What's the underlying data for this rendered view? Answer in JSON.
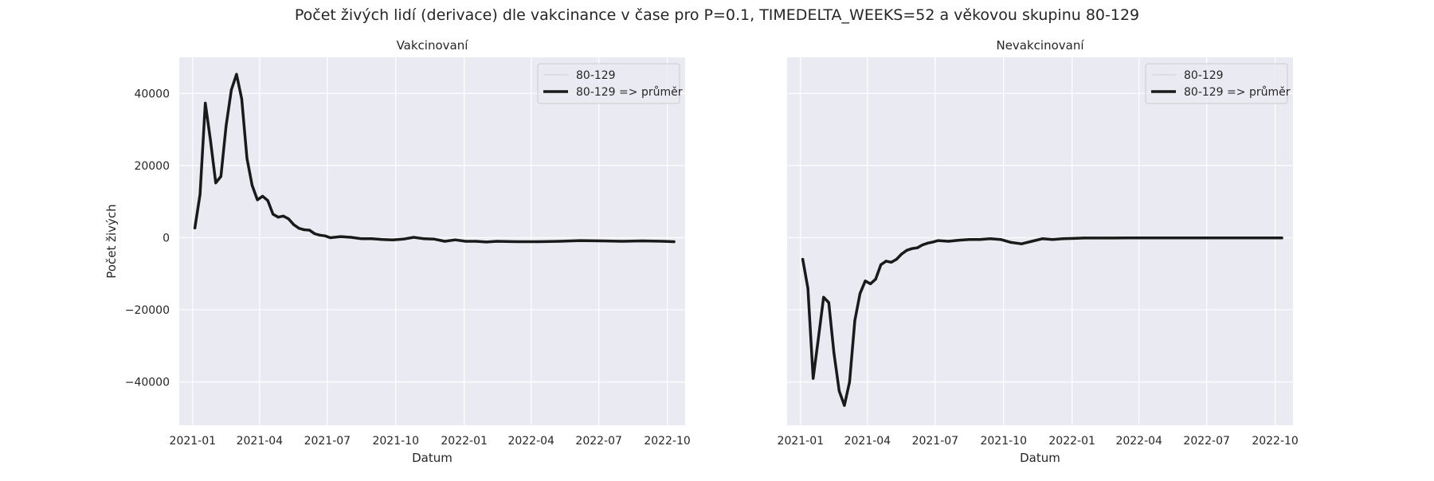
{
  "figure": {
    "title": "Počet živých lidí (derivace) dle vakcinance v čase pro P=0.1, TIMEDELTA_WEEKS=52 a věkovou skupinu 80-129"
  },
  "colors": {
    "plot_background": "#eaeaf2",
    "grid": "#ffffff",
    "mean_line": "#1a1a1a",
    "raw_line": "#d0d0d8",
    "text": "#262626"
  },
  "chart_data": [
    {
      "type": "line",
      "title": "Vakcinovaní",
      "xlabel": "Datum",
      "ylabel": "Počet živých",
      "x_ticks": [
        "2021-01",
        "2021-04",
        "2021-07",
        "2021-10",
        "2022-01",
        "2022-04",
        "2022-07",
        "2022-10"
      ],
      "y_ticks": [
        40000,
        20000,
        0,
        -20000,
        -40000
      ],
      "y_tick_labels": [
        "40000",
        "20000",
        "0",
        "−20000",
        "−40000"
      ],
      "ylim": [
        -52000,
        50000
      ],
      "xlim": [
        "2020-12-14",
        "2022-10-25"
      ],
      "grid": true,
      "legend": {
        "placement": "top-right",
        "entries": [
          "80-129",
          "80-129 => průměr"
        ]
      },
      "series": [
        {
          "name": "80-129 => průměr",
          "x": [
            "2021-01-04",
            "2021-01-11",
            "2021-01-18",
            "2021-01-25",
            "2021-02-01",
            "2021-02-08",
            "2021-02-15",
            "2021-02-22",
            "2021-03-01",
            "2021-03-08",
            "2021-03-15",
            "2021-03-22",
            "2021-03-29",
            "2021-04-05",
            "2021-04-12",
            "2021-04-19",
            "2021-04-26",
            "2021-05-03",
            "2021-05-10",
            "2021-05-17",
            "2021-05-24",
            "2021-05-31",
            "2021-06-07",
            "2021-06-14",
            "2021-06-21",
            "2021-06-28",
            "2021-07-05",
            "2021-07-19",
            "2021-08-02",
            "2021-08-16",
            "2021-08-30",
            "2021-09-13",
            "2021-09-27",
            "2021-10-11",
            "2021-10-25",
            "2021-11-08",
            "2021-11-22",
            "2021-12-06",
            "2021-12-20",
            "2022-01-03",
            "2022-01-17",
            "2022-01-31",
            "2022-02-14",
            "2022-03-14",
            "2022-04-11",
            "2022-05-09",
            "2022-06-06",
            "2022-07-04",
            "2022-08-01",
            "2022-08-29",
            "2022-09-26",
            "2022-10-10"
          ],
          "y": [
            2700,
            12000,
            37300,
            27000,
            15200,
            17000,
            31000,
            41000,
            45300,
            38500,
            22000,
            14500,
            10500,
            11500,
            10300,
            6500,
            5700,
            6000,
            5200,
            3600,
            2600,
            2200,
            2100,
            1100,
            700,
            500,
            0,
            300,
            100,
            -300,
            -300,
            -500,
            -600,
            -400,
            100,
            -300,
            -400,
            -1000,
            -600,
            -1000,
            -1000,
            -1200,
            -1000,
            -1100,
            -1100,
            -1000,
            -800,
            -900,
            -1000,
            -900,
            -1000,
            -1100
          ]
        }
      ]
    },
    {
      "type": "line",
      "title": "Nevakcinovaní",
      "xlabel": "Datum",
      "ylabel": "",
      "x_ticks": [
        "2021-01",
        "2021-04",
        "2021-07",
        "2021-10",
        "2022-01",
        "2022-04",
        "2022-07",
        "2022-10"
      ],
      "ylim": [
        -52000,
        50000
      ],
      "xlim": [
        "2020-12-14",
        "2022-10-25"
      ],
      "grid": true,
      "legend": {
        "placement": "top-right",
        "entries": [
          "80-129",
          "80-129 => průměr"
        ]
      },
      "series": [
        {
          "name": "80-129 => průměr",
          "x": [
            "2021-01-04",
            "2021-01-11",
            "2021-01-18",
            "2021-01-25",
            "2021-02-01",
            "2021-02-08",
            "2021-02-15",
            "2021-02-22",
            "2021-03-01",
            "2021-03-08",
            "2021-03-15",
            "2021-03-22",
            "2021-03-29",
            "2021-04-05",
            "2021-04-12",
            "2021-04-19",
            "2021-04-26",
            "2021-05-03",
            "2021-05-10",
            "2021-05-17",
            "2021-05-24",
            "2021-05-31",
            "2021-06-07",
            "2021-06-14",
            "2021-06-21",
            "2021-06-28",
            "2021-07-05",
            "2021-07-19",
            "2021-08-02",
            "2021-08-16",
            "2021-08-30",
            "2021-09-13",
            "2021-09-27",
            "2021-10-11",
            "2021-10-25",
            "2021-11-08",
            "2021-11-22",
            "2021-12-06",
            "2021-12-20",
            "2022-01-03",
            "2022-01-17",
            "2022-01-31",
            "2022-02-14",
            "2022-03-14",
            "2022-04-11",
            "2022-05-09",
            "2022-06-06",
            "2022-07-04",
            "2022-08-01",
            "2022-08-29",
            "2022-09-26",
            "2022-10-10"
          ],
          "y": [
            -6000,
            -14000,
            -39000,
            -28000,
            -16500,
            -18000,
            -32000,
            -42500,
            -46500,
            -40000,
            -23000,
            -15500,
            -12000,
            -12800,
            -11500,
            -7500,
            -6500,
            -6800,
            -6000,
            -4500,
            -3500,
            -3000,
            -2800,
            -2000,
            -1500,
            -1200,
            -800,
            -1000,
            -700,
            -500,
            -500,
            -300,
            -500,
            -1300,
            -1700,
            -1000,
            -300,
            -500,
            -300,
            -200,
            -100,
            -100,
            -100,
            -50,
            -50,
            -50,
            -50,
            -50,
            -50,
            -50,
            -50,
            -50
          ]
        }
      ]
    }
  ]
}
